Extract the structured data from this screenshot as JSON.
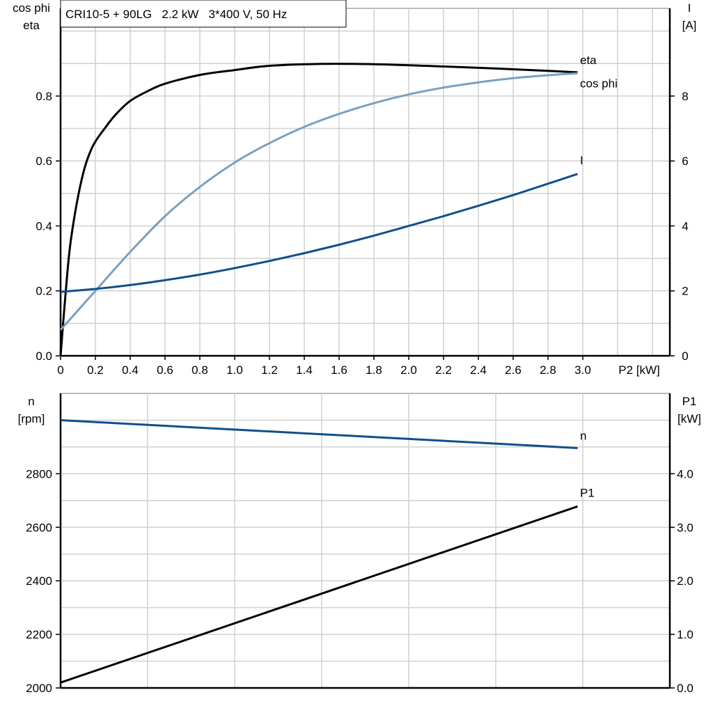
{
  "chart_data": [
    {
      "type": "line",
      "title": "CRI10-5 + 90LG   2.2 kW   3*400 V, 50 Hz",
      "xlabel": "P2 [kW]",
      "ylabel_left": [
        "cos phi",
        "eta"
      ],
      "ylabel_right": [
        "I",
        "[A]"
      ],
      "xlim": [
        0,
        3.5
      ],
      "ylim_left": [
        0,
        1.07
      ],
      "ylim_right": [
        0,
        10.7
      ],
      "xticks": [
        "0",
        "0.2",
        "0.4",
        "0.6",
        "0.8",
        "1.0",
        "1.2",
        "1.4",
        "1.6",
        "1.8",
        "2.0",
        "2.2",
        "2.4",
        "2.6",
        "2.8",
        "3.0"
      ],
      "yticks_left": [
        "0.0",
        "0.2",
        "0.4",
        "0.6",
        "0.8"
      ],
      "yticks_right": [
        "0",
        "2",
        "4",
        "6",
        "8"
      ],
      "grid": true,
      "series": [
        {
          "name": "eta",
          "axis": "left",
          "color": "#000000",
          "x": [
            0,
            0.03,
            0.06,
            0.12,
            0.18,
            0.26,
            0.32,
            0.4,
            0.5,
            0.6,
            0.8,
            1.0,
            1.2,
            1.5,
            1.8,
            2.1,
            2.4,
            2.7,
            2.97
          ],
          "y": [
            0,
            0.2,
            0.36,
            0.54,
            0.64,
            0.705,
            0.745,
            0.785,
            0.815,
            0.838,
            0.865,
            0.88,
            0.893,
            0.899,
            0.898,
            0.893,
            0.887,
            0.88,
            0.873
          ]
        },
        {
          "name": "cos phi",
          "axis": "left",
          "color": "#7aa0c0",
          "x": [
            0,
            0.1,
            0.2,
            0.4,
            0.6,
            0.8,
            1.0,
            1.2,
            1.4,
            1.6,
            1.8,
            2.0,
            2.2,
            2.4,
            2.6,
            2.8,
            2.97
          ],
          "y": [
            0.08,
            0.14,
            0.2,
            0.32,
            0.43,
            0.52,
            0.595,
            0.655,
            0.705,
            0.745,
            0.778,
            0.805,
            0.826,
            0.842,
            0.855,
            0.864,
            0.87
          ]
        },
        {
          "name": "I",
          "axis": "right",
          "color": "#104e8b",
          "x": [
            0,
            0.2,
            0.4,
            0.6,
            0.8,
            1.0,
            1.2,
            1.4,
            1.6,
            1.8,
            2.0,
            2.2,
            2.4,
            2.6,
            2.8,
            2.97
          ],
          "y": [
            1.97,
            2.06,
            2.18,
            2.33,
            2.5,
            2.7,
            2.92,
            3.16,
            3.42,
            3.7,
            4.0,
            4.3,
            4.62,
            4.95,
            5.3,
            5.6
          ]
        }
      ]
    },
    {
      "type": "line",
      "ylabel_left": [
        "n",
        "[rpm]"
      ],
      "ylabel_right": [
        "P1",
        "[kW]"
      ],
      "xlim": [
        0,
        3.5
      ],
      "ylim_left": [
        2000,
        3100
      ],
      "ylim_right": [
        0,
        5.5
      ],
      "yticks_left": [
        "2000",
        "2200",
        "2400",
        "2600",
        "2800"
      ],
      "yticks_right": [
        "0.0",
        "1.0",
        "2.0",
        "3.0",
        "4.0"
      ],
      "grid": true,
      "series": [
        {
          "name": "n",
          "axis": "left",
          "color": "#104e8b",
          "x": [
            0,
            2.97
          ],
          "y": [
            3000,
            2896
          ]
        },
        {
          "name": "P1",
          "axis": "right",
          "color": "#000000",
          "x": [
            0,
            2.97
          ],
          "y": [
            0.1,
            3.39
          ]
        }
      ]
    }
  ]
}
